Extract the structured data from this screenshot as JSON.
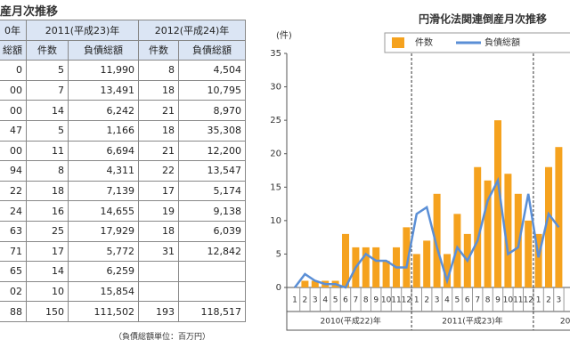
{
  "title": "産月次推移",
  "table": {
    "header_years": [
      "0年",
      "2011(平成23)年",
      "2012(平成24)年"
    ],
    "header_cols": [
      "総額",
      "件数",
      "負債総額",
      "件数",
      "負債総額"
    ],
    "rows": [
      [
        "0",
        "5",
        "11,990",
        "8",
        "4,504"
      ],
      [
        "00",
        "7",
        "13,491",
        "18",
        "10,795"
      ],
      [
        "00",
        "14",
        "6,242",
        "21",
        "8,970"
      ],
      [
        "47",
        "5",
        "1,166",
        "18",
        "35,308"
      ],
      [
        "00",
        "11",
        "6,694",
        "21",
        "12,200"
      ],
      [
        "94",
        "8",
        "4,311",
        "22",
        "13,547"
      ],
      [
        "22",
        "18",
        "7,139",
        "17",
        "5,174"
      ],
      [
        "24",
        "16",
        "14,655",
        "19",
        "9,138"
      ],
      [
        "63",
        "25",
        "17,929",
        "18",
        "6,039"
      ],
      [
        "71",
        "17",
        "5,772",
        "31",
        "12,842"
      ],
      [
        "65",
        "14",
        "6,259",
        null,
        null
      ],
      [
        "02",
        "10",
        "15,854",
        null,
        null
      ],
      [
        "88",
        "150",
        "111,502",
        "193",
        "118,517"
      ]
    ],
    "note": "（負債総額単位：百万円）"
  },
  "chart_data": {
    "type": "bar",
    "title": "円滑化法関連倒産月次推移",
    "y_label": "(件)",
    "categories": [
      "1",
      "2",
      "3",
      "4",
      "5",
      "6",
      "7",
      "8",
      "9",
      "10",
      "11",
      "12",
      "1",
      "2",
      "3",
      "4",
      "5",
      "6",
      "7",
      "8",
      "9",
      "10",
      "11",
      "12",
      "1",
      "2",
      "3"
    ],
    "groups": [
      "2010(平成22)年",
      "2011(平成23)年",
      "20"
    ],
    "series": [
      {
        "name": "件数",
        "color": "#f5a21e",
        "type": "bar",
        "values": [
          0,
          1,
          1,
          1,
          1,
          8,
          6,
          6,
          6,
          4,
          6,
          9,
          5,
          7,
          14,
          5,
          11,
          8,
          18,
          16,
          25,
          17,
          14,
          10,
          8,
          18,
          21
        ]
      },
      {
        "name": "負債総額",
        "color": "#5b8fd6",
        "type": "line",
        "values": [
          0,
          2,
          1,
          0.5,
          0.5,
          0,
          3,
          5,
          4,
          4,
          3,
          3,
          11,
          12,
          6,
          1,
          6,
          4,
          7,
          13,
          16,
          5,
          6,
          14,
          4.5,
          11,
          9
        ]
      }
    ],
    "ylim": [
      0,
      35
    ],
    "yticks": [
      0,
      5,
      10,
      15,
      20,
      25,
      30,
      35
    ]
  }
}
